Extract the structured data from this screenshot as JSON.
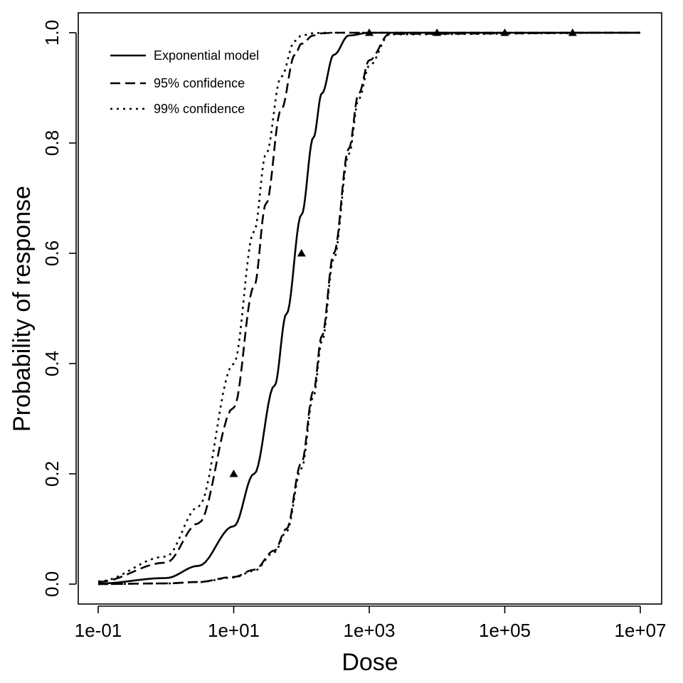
{
  "chart_data": {
    "type": "line",
    "title": "",
    "xlabel": "Dose",
    "ylabel": "Probability of response",
    "xscale": "log10",
    "xlim": [
      0.1,
      10000000
    ],
    "ylim": [
      0,
      1
    ],
    "x_ticks": [
      {
        "value": 0.1,
        "label": "1e-01"
      },
      {
        "value": 10,
        "label": "1e+01"
      },
      {
        "value": 1000,
        "label": "1e+03"
      },
      {
        "value": 100000,
        "label": "1e+05"
      },
      {
        "value": 10000000,
        "label": "1e+07"
      }
    ],
    "y_ticks": [
      {
        "value": 0.0,
        "label": "0.0"
      },
      {
        "value": 0.2,
        "label": "0.2"
      },
      {
        "value": 0.4,
        "label": "0.4"
      },
      {
        "value": 0.6,
        "label": "0.6"
      },
      {
        "value": 0.8,
        "label": "0.8"
      },
      {
        "value": 1.0,
        "label": "1.0"
      }
    ],
    "grid": false,
    "legend_position": "top-left",
    "series": [
      {
        "name": "Exponential model",
        "style": "solid",
        "x": [
          0.1,
          1,
          3,
          10,
          20,
          40,
          60,
          100,
          150,
          200,
          300,
          500,
          1000,
          10000,
          100000,
          1000000,
          10000000
        ],
        "y": [
          0.001,
          0.011,
          0.033,
          0.105,
          0.2,
          0.36,
          0.49,
          0.67,
          0.81,
          0.89,
          0.96,
          0.995,
          1.0,
          1.0,
          1.0,
          1.0,
          1.0
        ]
      },
      {
        "name": "95% confidence",
        "style": "dashed",
        "x": [
          0.1,
          1,
          3,
          10,
          20,
          30,
          50,
          80,
          100,
          150,
          200,
          300,
          500,
          1000,
          10000000
        ],
        "y": [
          0.004,
          0.039,
          0.11,
          0.32,
          0.54,
          0.69,
          0.86,
          0.96,
          0.98,
          0.995,
          0.999,
          1.0,
          1.0,
          1.0,
          1.0
        ]
      },
      {
        "name": "95% confidence",
        "style": "dashed",
        "x": [
          0.1,
          1,
          3,
          10,
          20,
          40,
          60,
          100,
          150,
          200,
          300,
          500,
          700,
          1000,
          2000,
          10000000
        ],
        "y": [
          0.0001,
          0.0013,
          0.0039,
          0.013,
          0.026,
          0.061,
          0.1,
          0.22,
          0.35,
          0.45,
          0.6,
          0.79,
          0.89,
          0.95,
          0.998,
          1.0
        ]
      },
      {
        "name": "99% confidence",
        "style": "dotted",
        "x": [
          0.1,
          1,
          3,
          10,
          20,
          30,
          50,
          80,
          100,
          150,
          200,
          300,
          1000,
          10000000
        ],
        "y": [
          0.005,
          0.05,
          0.14,
          0.4,
          0.64,
          0.78,
          0.92,
          0.985,
          0.995,
          0.999,
          1.0,
          1.0,
          1.0,
          1.0
        ]
      },
      {
        "name": "99% confidence",
        "style": "dotted",
        "x": [
          0.1,
          1,
          3,
          10,
          20,
          40,
          60,
          100,
          150,
          200,
          300,
          500,
          700,
          1000,
          2000,
          10000000
        ],
        "y": [
          0.0001,
          0.0012,
          0.0036,
          0.012,
          0.024,
          0.058,
          0.095,
          0.21,
          0.34,
          0.44,
          0.59,
          0.78,
          0.88,
          0.94,
          0.997,
          1.0
        ]
      }
    ],
    "observed_points": {
      "marker": "triangle",
      "x": [
        10,
        100,
        1000,
        10000,
        100000,
        1000000
      ],
      "y": [
        0.2,
        0.6,
        1.0,
        1.0,
        1.0,
        1.0
      ]
    },
    "legend": [
      {
        "label": "Exponential model",
        "style": "solid"
      },
      {
        "label": "95% confidence",
        "style": "dashed"
      },
      {
        "label": "99% confidence",
        "style": "dotted"
      }
    ]
  }
}
